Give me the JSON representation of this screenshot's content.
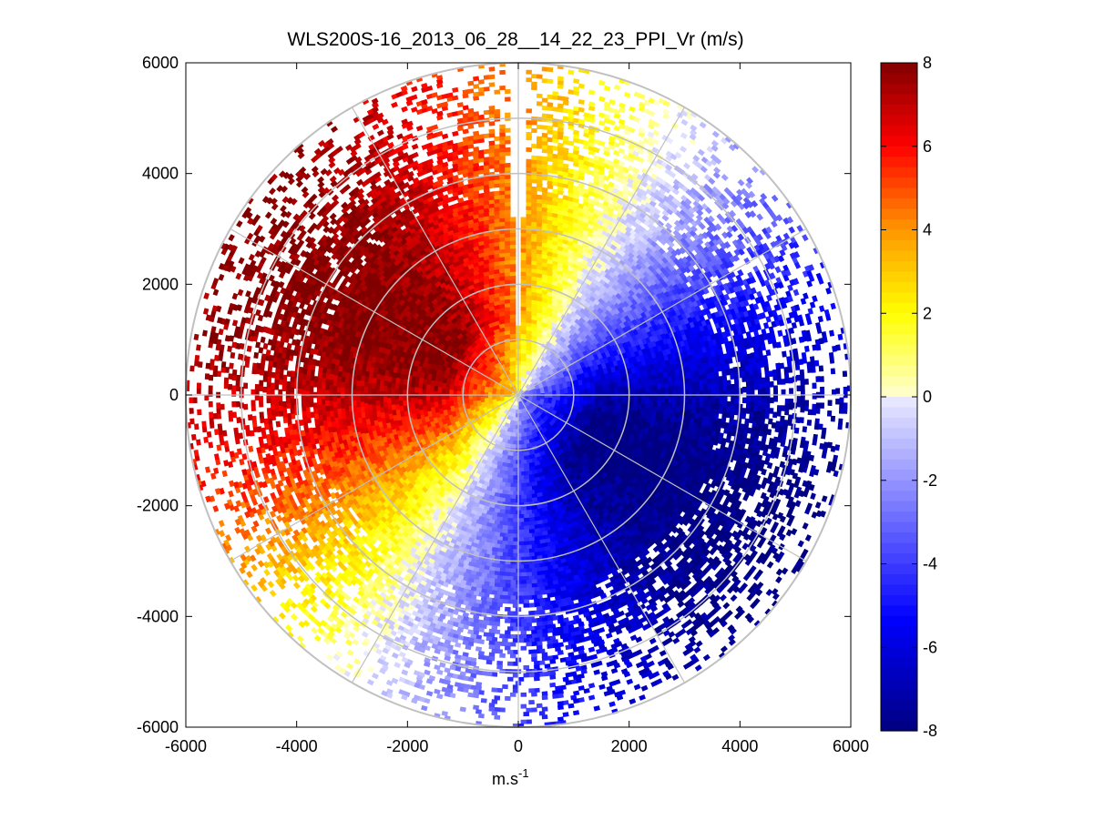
{
  "chart_data": {
    "type": "heatmap",
    "subtype": "polar-ppi",
    "title": "WLS200S-16_2013_06_28__14_22_23_PPI_Vr (m/s)",
    "xlabel": "m.s",
    "xlabel_exponent": "-1",
    "ylabel": "",
    "xlim": [
      -6000,
      6000
    ],
    "ylim": [
      -6000,
      6000
    ],
    "x_ticks": [
      -6000,
      -4000,
      -2000,
      0,
      2000,
      4000,
      6000
    ],
    "y_ticks": [
      -6000,
      -4000,
      -2000,
      0,
      2000,
      4000,
      6000
    ],
    "x_tick_labels": [
      "-6000",
      "-4000",
      "-2000",
      "0",
      "2000",
      "4000",
      "6000"
    ],
    "y_tick_labels": [
      "-6000",
      "-4000",
      "-2000",
      "0",
      "2000",
      "4000",
      "6000"
    ],
    "max_range": 6000,
    "range_rings": [
      1000,
      2000,
      3000,
      4000,
      5000,
      6000
    ],
    "spoke_angles_deg": [
      0,
      30,
      60,
      90,
      120,
      150,
      180,
      210,
      240,
      270,
      300,
      330
    ],
    "colorbar": {
      "min": -8,
      "max": 8,
      "ticks": [
        8,
        6,
        4,
        2,
        0,
        -2,
        -4,
        -6,
        -8
      ],
      "tick_labels": [
        "8",
        "6",
        "4",
        "2",
        "0",
        "-2",
        "-4",
        "-6",
        "-8"
      ]
    },
    "velocity_pattern": {
      "positive_max_bearing_deg": 300,
      "negative_max_bearing_deg": 120,
      "peak_magnitude": 8,
      "dense_range_limit": 4500,
      "sparse_range_limit": 6000
    },
    "grid": true
  },
  "colors": {
    "grid": "#c0c0c0",
    "axis": "#000000",
    "background": "#ffffff",
    "colormap_negative": [
      "#000080",
      "#0000ff",
      "#8080ff",
      "#ffffff"
    ],
    "colormap_positive": [
      "#ffffff",
      "#ffff00",
      "#ff8000",
      "#ff0000",
      "#800000"
    ]
  }
}
